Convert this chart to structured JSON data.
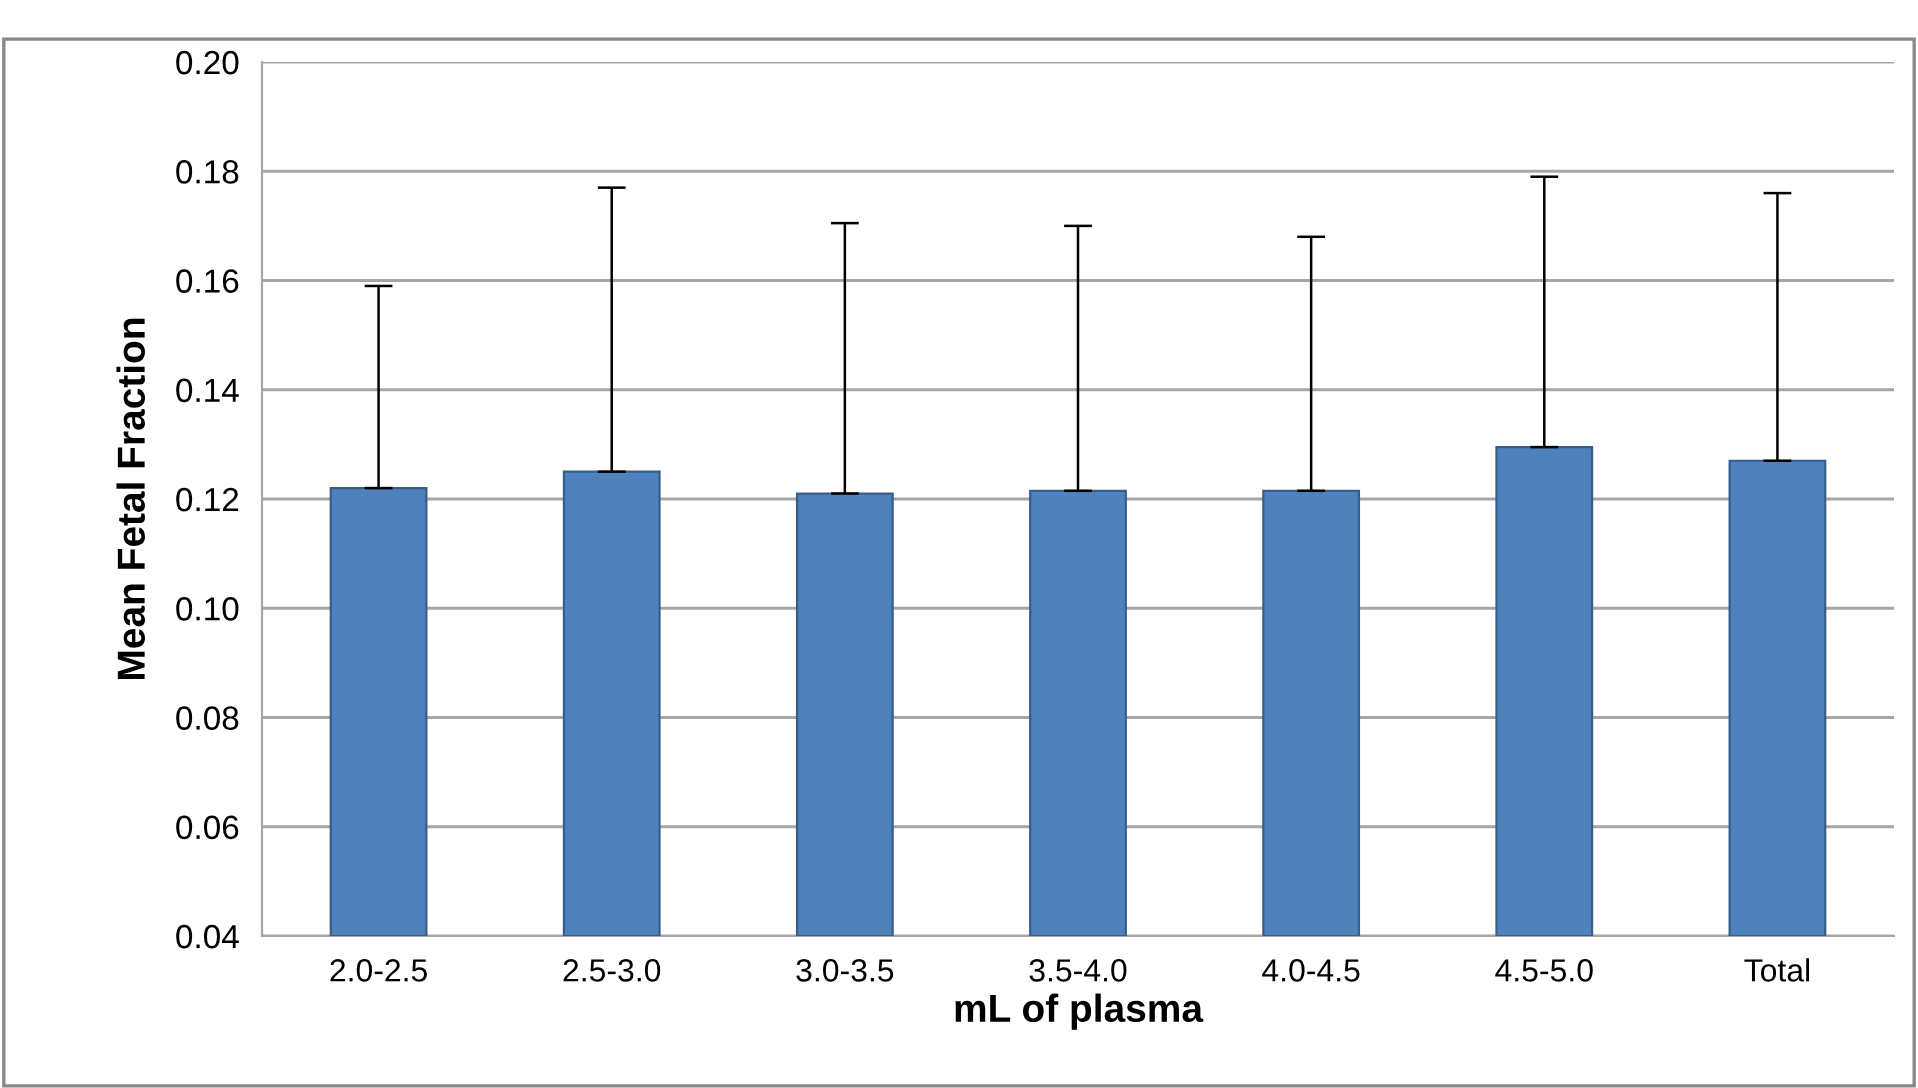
{
  "chart_data": {
    "type": "bar",
    "xlabel": "mL of plasma",
    "ylabel": "Mean Fetal Fraction",
    "categories": [
      "2.0-2.5",
      "2.5-3.0",
      "3.0-3.5",
      "3.5-4.0",
      "4.0-4.5",
      "4.5-5.0",
      "Total"
    ],
    "values": [
      0.122,
      0.125,
      0.121,
      0.1215,
      0.1215,
      0.1295,
      0.127
    ],
    "errors": [
      [
        0.122,
        0.159
      ],
      [
        0.125,
        0.177
      ],
      [
        0.121,
        0.1705
      ],
      [
        0.1215,
        0.17
      ],
      [
        0.1215,
        0.168
      ],
      [
        0.1295,
        0.179
      ],
      [
        0.127,
        0.176
      ]
    ],
    "color": "#4f81bd",
    "ylim": [
      0.04,
      0.2
    ],
    "yticks": [
      {
        "value": 0.04,
        "label": "0.04"
      },
      {
        "value": 0.06,
        "label": "0.06"
      },
      {
        "value": 0.08,
        "label": "0.08"
      },
      {
        "value": 0.1,
        "label": "0.10"
      },
      {
        "value": 0.12,
        "label": "0.12"
      },
      {
        "value": 0.14,
        "label": "0.14"
      },
      {
        "value": 0.16,
        "label": "0.16"
      },
      {
        "value": 0.18,
        "label": "0.18"
      },
      {
        "value": 0.2,
        "label": "0.20"
      }
    ],
    "grid": "y"
  }
}
